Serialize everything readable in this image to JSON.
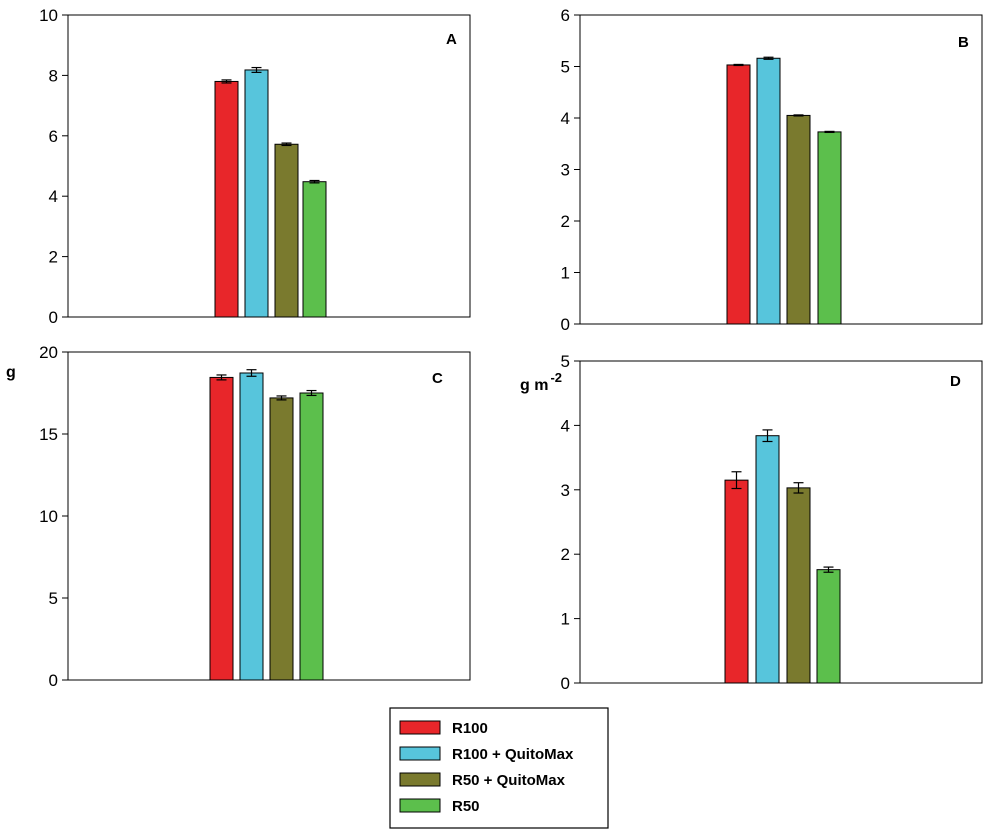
{
  "chart_data": [
    {
      "type": "bar",
      "panel": "A",
      "ylim": [
        0,
        10
      ],
      "yticks": [
        0,
        2,
        4,
        6,
        8,
        10
      ],
      "unit": "",
      "series": [
        {
          "name": "R100",
          "value": 7.8,
          "error": 0.05
        },
        {
          "name": "R100 + QuitoMax",
          "value": 8.18,
          "error": 0.08
        },
        {
          "name": "R50 + QuitoMax",
          "value": 5.72,
          "error": 0.04
        },
        {
          "name": "R50",
          "value": 4.48,
          "error": 0.04
        }
      ]
    },
    {
      "type": "bar",
      "panel": "B",
      "ylim": [
        0,
        6
      ],
      "yticks": [
        0,
        1,
        2,
        3,
        4,
        5,
        6
      ],
      "unit": "",
      "series": [
        {
          "name": "R100",
          "value": 5.03,
          "error": 0.01
        },
        {
          "name": "R100 + QuitoMax",
          "value": 5.16,
          "error": 0.02
        },
        {
          "name": "R50 + QuitoMax",
          "value": 4.05,
          "error": 0.01
        },
        {
          "name": "R50",
          "value": 3.73,
          "error": 0.01
        }
      ]
    },
    {
      "type": "bar",
      "panel": "C",
      "ylim": [
        0,
        20
      ],
      "yticks": [
        0,
        5,
        10,
        15,
        20
      ],
      "unit": "g",
      "series": [
        {
          "name": "R100",
          "value": 18.45,
          "error": 0.15
        },
        {
          "name": "R100 + QuitoMax",
          "value": 18.72,
          "error": 0.2
        },
        {
          "name": "R50 + QuitoMax",
          "value": 17.2,
          "error": 0.12
        },
        {
          "name": "R50",
          "value": 17.5,
          "error": 0.15
        }
      ]
    },
    {
      "type": "bar",
      "panel": "D",
      "ylim": [
        0,
        5
      ],
      "yticks": [
        0,
        1,
        2,
        3,
        4,
        5
      ],
      "unit": "g m",
      "unit_superscript": "-2",
      "series": [
        {
          "name": "R100",
          "value": 3.15,
          "error": 0.13
        },
        {
          "name": "R100 + QuitoMax",
          "value": 3.84,
          "error": 0.09
        },
        {
          "name": "R50 + QuitoMax",
          "value": 3.03,
          "error": 0.08
        },
        {
          "name": "R50",
          "value": 1.76,
          "error": 0.04
        }
      ]
    }
  ],
  "legend": {
    "placement": "bottom-center",
    "items": [
      {
        "label": "R100",
        "color": "#e8262a"
      },
      {
        "label": "R100 + QuitoMax",
        "color": "#57c5dc"
      },
      {
        "label": "R50 + QuitoMax",
        "color": "#7a7a2e"
      },
      {
        "label": "R50",
        "color": "#5cbf4c"
      }
    ]
  }
}
